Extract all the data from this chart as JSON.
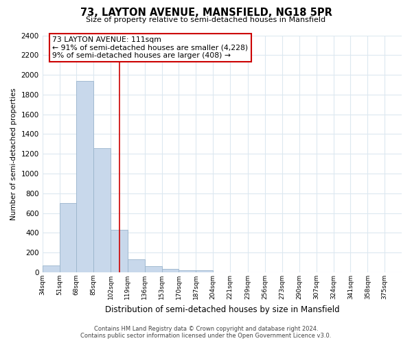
{
  "title": "73, LAYTON AVENUE, MANSFIELD, NG18 5PR",
  "subtitle": "Size of property relative to semi-detached houses in Mansfield",
  "xlabel": "Distribution of semi-detached houses by size in Mansfield",
  "ylabel": "Number of semi-detached properties",
  "bar_lefts": [
    34,
    51,
    68,
    85,
    102,
    119,
    136,
    153,
    170,
    187,
    204,
    221,
    238,
    255,
    272,
    289,
    306,
    323,
    340,
    357
  ],
  "bar_rights": [
    51,
    68,
    85,
    102,
    119,
    136,
    153,
    170,
    187,
    204,
    221,
    238,
    255,
    272,
    289,
    306,
    323,
    340,
    357,
    374
  ],
  "bar_heights": [
    70,
    700,
    1940,
    1260,
    430,
    130,
    60,
    35,
    20,
    20,
    0,
    0,
    0,
    0,
    0,
    0,
    0,
    0,
    0,
    0
  ],
  "bar_color": "#c8d8eb",
  "bar_edge_color": "#9ab4cc",
  "property_size": 111,
  "property_line_color": "#cc0000",
  "annotation_title": "73 LAYTON AVENUE: 111sqm",
  "annotation_line1": "← 91% of semi-detached houses are smaller (4,228)",
  "annotation_line2": "9% of semi-detached houses are larger (408) →",
  "annotation_box_color": "#ffffff",
  "annotation_box_edge": "#cc0000",
  "ylim": [
    0,
    2400
  ],
  "yticks": [
    0,
    200,
    400,
    600,
    800,
    1000,
    1200,
    1400,
    1600,
    1800,
    2000,
    2200,
    2400
  ],
  "xtick_positions": [
    34,
    51,
    68,
    85,
    102,
    119,
    136,
    153,
    170,
    187,
    204,
    221,
    239,
    256,
    273,
    290,
    307,
    324,
    341,
    358,
    375
  ],
  "xtick_labels": [
    "34sqm",
    "51sqm",
    "68sqm",
    "85sqm",
    "102sqm",
    "119sqm",
    "136sqm",
    "153sqm",
    "170sqm",
    "187sqm",
    "204sqm",
    "221sqm",
    "239sqm",
    "256sqm",
    "273sqm",
    "290sqm",
    "307sqm",
    "324sqm",
    "341sqm",
    "358sqm",
    "375sqm"
  ],
  "footer_line1": "Contains HM Land Registry data © Crown copyright and database right 2024.",
  "footer_line2": "Contains public sector information licensed under the Open Government Licence v3.0.",
  "background_color": "#ffffff",
  "grid_color": "#dce8f0",
  "xlim_left": 34,
  "xlim_right": 392
}
